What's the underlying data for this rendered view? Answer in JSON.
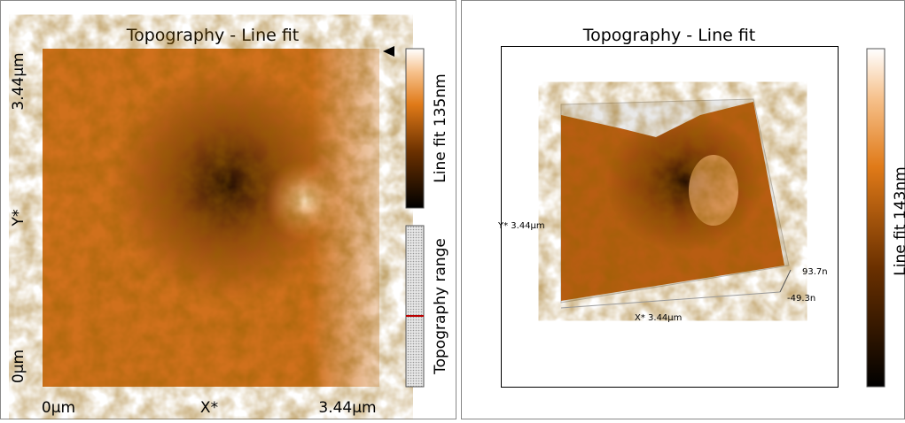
{
  "left_panel": {
    "title": "Topography - Line fit",
    "y_axis": {
      "top": "3.44µm",
      "label": "Y*",
      "bottom": "0µm"
    },
    "x_axis": {
      "left": "0µm",
      "label": "X*",
      "right": "3.44µm"
    },
    "colorbar_label": "Line fit 135nm",
    "range_label": "Topography range"
  },
  "right_panel": {
    "title": "Topography - Line fit",
    "y_axis_label": "Y* 3.44µm",
    "x_axis_label": "X* 3.44µm",
    "z_max": "93.7n",
    "z_min": "-49.3n",
    "colorbar_label": "Line fit 143nm"
  }
}
